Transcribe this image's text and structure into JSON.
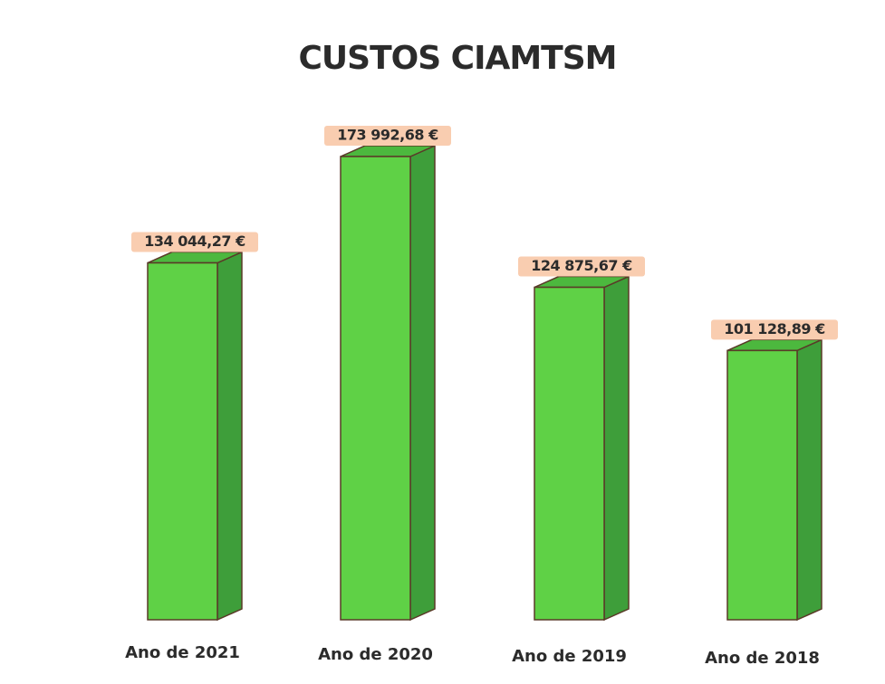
{
  "chart_data": {
    "type": "bar3d",
    "title": "CUSTOS CIAMTSM",
    "categories": [
      "Ano de 2021",
      "Ano de 2020",
      "Ano de 2019",
      "Ano de 2018"
    ],
    "values": [
      134044.27,
      173992.68,
      124875.67,
      101128.89
    ],
    "value_labels": [
      "134 044,27 €",
      "173 992,68 €",
      "124 875,67 €",
      "101 128,89 €"
    ],
    "color": "#5fd146"
  }
}
